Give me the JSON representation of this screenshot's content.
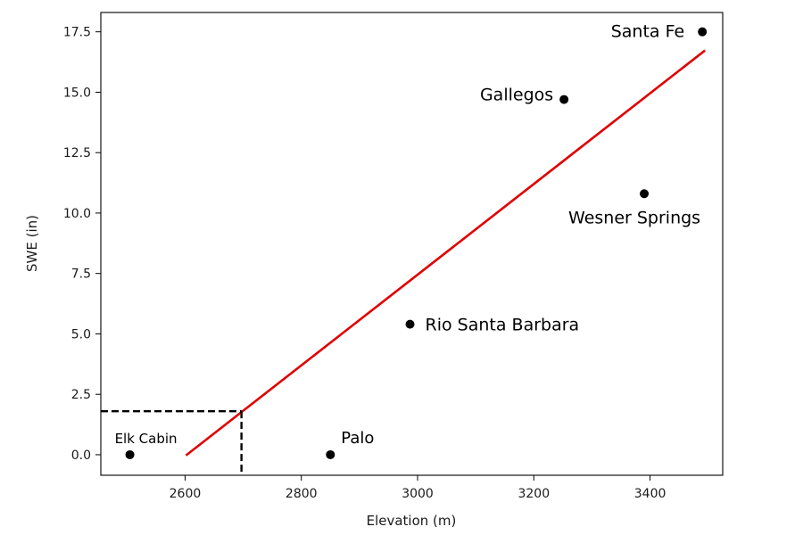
{
  "chart_data": {
    "type": "scatter",
    "xlabel": "Elevation (m)",
    "ylabel": "SWE (in)",
    "xlim": [
      2455,
      3525
    ],
    "ylim": [
      -0.85,
      18.3
    ],
    "x_ticks": [
      2600,
      2800,
      3000,
      3200,
      3400
    ],
    "y_ticks": [
      0.0,
      2.5,
      5.0,
      7.5,
      10.0,
      12.5,
      15.0,
      17.5
    ],
    "x_tick_labels": [
      "2600",
      "2800",
      "3000",
      "3200",
      "3400"
    ],
    "y_tick_labels": [
      "0.0",
      "2.5",
      "5.0",
      "7.5",
      "10.0",
      "12.5",
      "15.0",
      "17.5"
    ],
    "grid": false,
    "points": [
      {
        "label": "Elk Cabin",
        "x": 2505,
        "y": 0.0
      },
      {
        "label": "Palo",
        "x": 2850,
        "y": 0.0
      },
      {
        "label": "Rio Santa Barbara",
        "x": 2987,
        "y": 5.4
      },
      {
        "label": "Wesner Springs",
        "x": 3390,
        "y": 10.8
      },
      {
        "label": "Gallegos",
        "x": 3252,
        "y": 14.7
      },
      {
        "label": "Santa Fe",
        "x": 3490,
        "y": 17.5
      }
    ],
    "trend_line": {
      "color": "#e00000",
      "x": [
        2603,
        3493
      ],
      "y": [
        0.0,
        16.7
      ]
    },
    "reference_lines": {
      "color": "#000000",
      "style": "dashed",
      "x": 2697,
      "y": 1.8
    },
    "point_color": "#000000"
  }
}
